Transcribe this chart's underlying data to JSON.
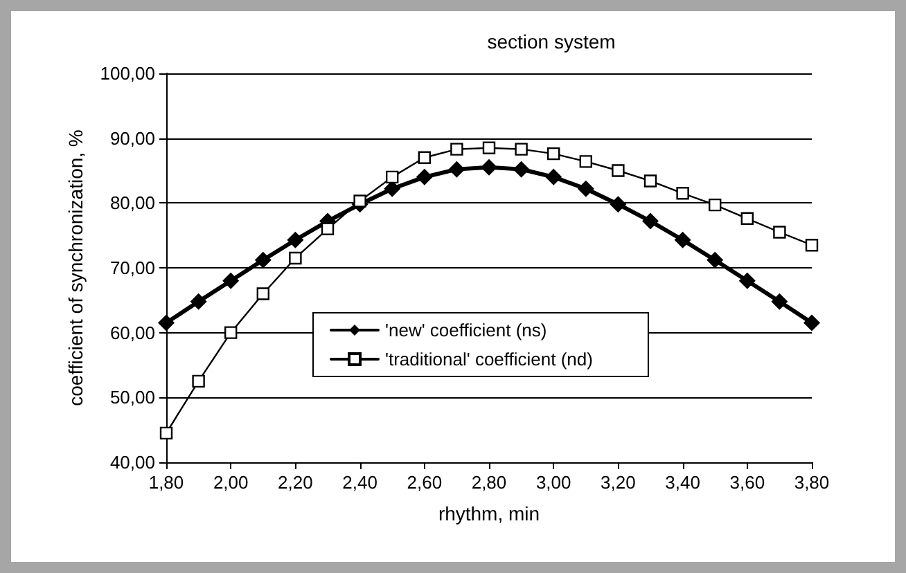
{
  "chart_data": {
    "type": "line",
    "title": "section system",
    "xlabel": "rhythm, min",
    "ylabel": "coefficient of synchronization, %",
    "x": [
      1.8,
      1.9,
      2.0,
      2.1,
      2.2,
      2.3,
      2.4,
      2.5,
      2.6,
      2.7,
      2.8,
      2.9,
      3.0,
      3.1,
      3.2,
      3.3,
      3.4,
      3.5,
      3.6,
      3.7,
      3.8
    ],
    "series": [
      {
        "name": "'new' coefficient (ns)",
        "color": "#000000",
        "marker": "diamond",
        "values": [
          61.5,
          64.8,
          68,
          71.2,
          74.3,
          77.2,
          79.8,
          82.2,
          84,
          85.2,
          85.5,
          85.2,
          84,
          82.2,
          79.8,
          77.2,
          74.3,
          71.2,
          68,
          64.8,
          61.5
        ]
      },
      {
        "name": "'traditional' coefficient (nd)",
        "color": "#000000",
        "marker": "square",
        "values": [
          44.5,
          52.5,
          60,
          66,
          71.5,
          76,
          80.3,
          84,
          87,
          88.3,
          88.5,
          88.3,
          87.6,
          86.4,
          85,
          83.4,
          81.5,
          79.7,
          77.6,
          75.5,
          73.5
        ]
      }
    ],
    "xlim": [
      1.8,
      3.8
    ],
    "xticks": [
      {
        "value": 1.8,
        "label": "1,80"
      },
      {
        "value": 2.0,
        "label": "2,00"
      },
      {
        "value": 2.2,
        "label": "2,20"
      },
      {
        "value": 2.4,
        "label": "2,40"
      },
      {
        "value": 2.6,
        "label": "2,60"
      },
      {
        "value": 2.8,
        "label": "2,80"
      },
      {
        "value": 3.0,
        "label": "3,00"
      },
      {
        "value": 3.2,
        "label": "3,20"
      },
      {
        "value": 3.4,
        "label": "3,40"
      },
      {
        "value": 3.6,
        "label": "3,60"
      },
      {
        "value": 3.8,
        "label": "3,80"
      }
    ],
    "ylim": [
      40,
      100
    ],
    "yticks": [
      {
        "value": 40,
        "label": "40,00"
      },
      {
        "value": 50,
        "label": "50,00"
      },
      {
        "value": 60,
        "label": "60,00"
      },
      {
        "value": 70,
        "label": "70,00"
      },
      {
        "value": 80,
        "label": "80,00"
      },
      {
        "value": 90,
        "label": "90,00"
      },
      {
        "value": 100,
        "label": "100,00"
      }
    ],
    "grid": "y",
    "legend": "bottom",
    "line_style": "solid"
  }
}
